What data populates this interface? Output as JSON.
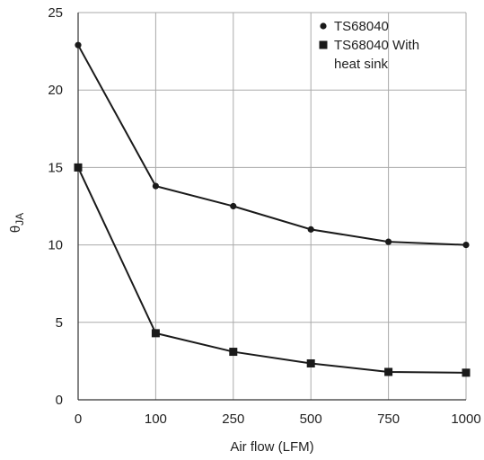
{
  "chart_data": {
    "type": "line",
    "categories": [
      "0",
      "100",
      "250",
      "500",
      "750",
      "1000"
    ],
    "series": [
      {
        "name": "TS68040",
        "marker": "circle",
        "values": [
          22.9,
          13.8,
          12.5,
          11.0,
          10.2,
          10.0
        ]
      },
      {
        "name": "TS68040 With heat sink",
        "marker": "square",
        "values": [
          15.0,
          4.3,
          3.1,
          2.35,
          1.8,
          1.75
        ]
      }
    ],
    "xlabel": "Air flow (LFM)",
    "ylabel_main": "θ",
    "ylabel_sub": "JA",
    "ylim": [
      0,
      25
    ],
    "yticks": [
      "0",
      "5",
      "10",
      "15",
      "20",
      "25"
    ],
    "grid": true,
    "legend_position": "top-right",
    "legend_lines": [
      {
        "text": "TS68040",
        "marker": "circle"
      },
      {
        "text": "TS68040 With",
        "marker": "square"
      },
      {
        "text": "heat sink",
        "marker": ""
      }
    ],
    "colors": {
      "line": "#1a1a1a",
      "grid": "#aaaaaa",
      "axis": "#333333"
    }
  }
}
